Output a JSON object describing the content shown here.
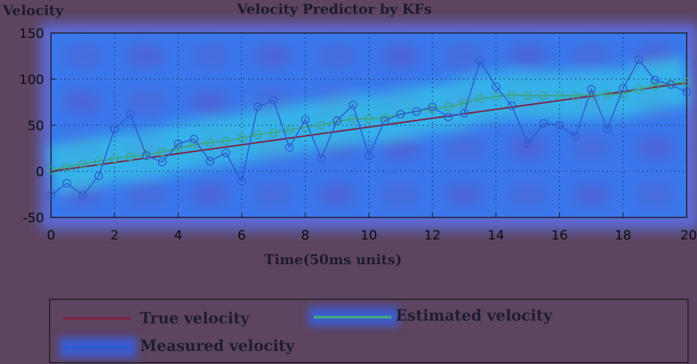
{
  "chart_data": {
    "type": "line",
    "title": "Velocity Predictor by KFs",
    "xlabel": "Time(50ms units)",
    "ylabel": "Velocity",
    "xlim": [
      0,
      20
    ],
    "ylim": [
      -50,
      150
    ],
    "xticks": [
      "0",
      "2",
      "4",
      "6",
      "8",
      "10",
      "12",
      "14",
      "16",
      "18",
      "20"
    ],
    "yticks": [
      "150",
      "100",
      "50",
      "0",
      "-50"
    ],
    "grid": true,
    "legend_position": "bottom",
    "x": [
      0,
      0.5,
      1,
      1.5,
      2,
      2.5,
      3,
      3.5,
      4,
      4.5,
      5,
      5.5,
      6,
      6.5,
      7,
      7.5,
      8,
      8.5,
      9,
      9.5,
      10,
      10.5,
      11,
      11.5,
      12,
      12.5,
      13,
      13.5,
      14,
      14.5,
      15,
      15.5,
      16,
      16.5,
      17,
      17.5,
      18,
      18.5,
      19,
      19.5,
      20
    ],
    "series": [
      {
        "name": "True velocity",
        "color": "#7a2545",
        "marker": "none",
        "values": [
          0,
          2.4,
          4.8,
          7.2,
          9.6,
          12,
          14.4,
          16.8,
          19.2,
          21.6,
          24,
          26.4,
          28.8,
          31.2,
          33.6,
          36,
          38.4,
          40.8,
          43.2,
          45.6,
          48,
          50.4,
          52.8,
          55.2,
          57.6,
          60,
          62.4,
          64.8,
          67.2,
          69.6,
          72,
          74.4,
          76.8,
          79.2,
          81.6,
          84,
          86.4,
          88.8,
          91.2,
          93.6,
          96
        ]
      },
      {
        "name": "Measured velocity",
        "color": "#2d5bd0",
        "marker": "circle",
        "values": [
          -26,
          -13,
          -26,
          -5,
          46,
          62,
          17,
          10,
          30,
          35,
          11,
          20,
          -11,
          70,
          77,
          26,
          56,
          14,
          55,
          72,
          17,
          55,
          62,
          65,
          70,
          59,
          63,
          120,
          92,
          71,
          30,
          52,
          50,
          38,
          89,
          46,
          90,
          121,
          99,
          94,
          86
        ]
      },
      {
        "name": "Estimated velocity",
        "color": "#3ea486",
        "marker": "circle",
        "values": [
          1,
          5,
          8,
          11,
          14,
          16,
          18,
          21,
          25,
          29,
          31,
          33,
          36,
          40,
          42,
          45,
          48,
          50,
          54,
          57,
          57,
          58,
          62,
          65,
          68,
          70,
          74,
          79,
          81,
          83,
          82,
          82,
          82,
          82,
          83,
          83,
          84,
          89,
          93,
          95,
          97
        ]
      }
    ]
  }
}
